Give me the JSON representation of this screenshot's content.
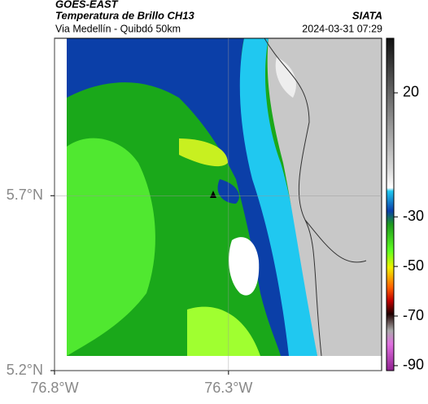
{
  "header": {
    "satellite": "GOES-EAST",
    "title": "Temperatura de Brillo CH13",
    "source": "SIATA",
    "subtitle": "Via Medellín - Quibdó 50km",
    "timestamp": "2024-03-31 07:29"
  },
  "map": {
    "xlim": [
      -76.8,
      -75.86
    ],
    "ylim": [
      5.2,
      6.15
    ],
    "xticks": [
      {
        "value": -76.8,
        "label": "76.8°W"
      },
      {
        "value": -76.3,
        "label": "76.3°W"
      }
    ],
    "yticks": [
      {
        "value": 5.2,
        "label": "5.2°N"
      },
      {
        "value": 5.7,
        "label": "5.7°N"
      }
    ],
    "grid": true
  },
  "colorbar": {
    "lim": [
      -92,
      42
    ],
    "ticks": [
      20,
      -30,
      -50,
      -70,
      -90
    ]
  }
}
